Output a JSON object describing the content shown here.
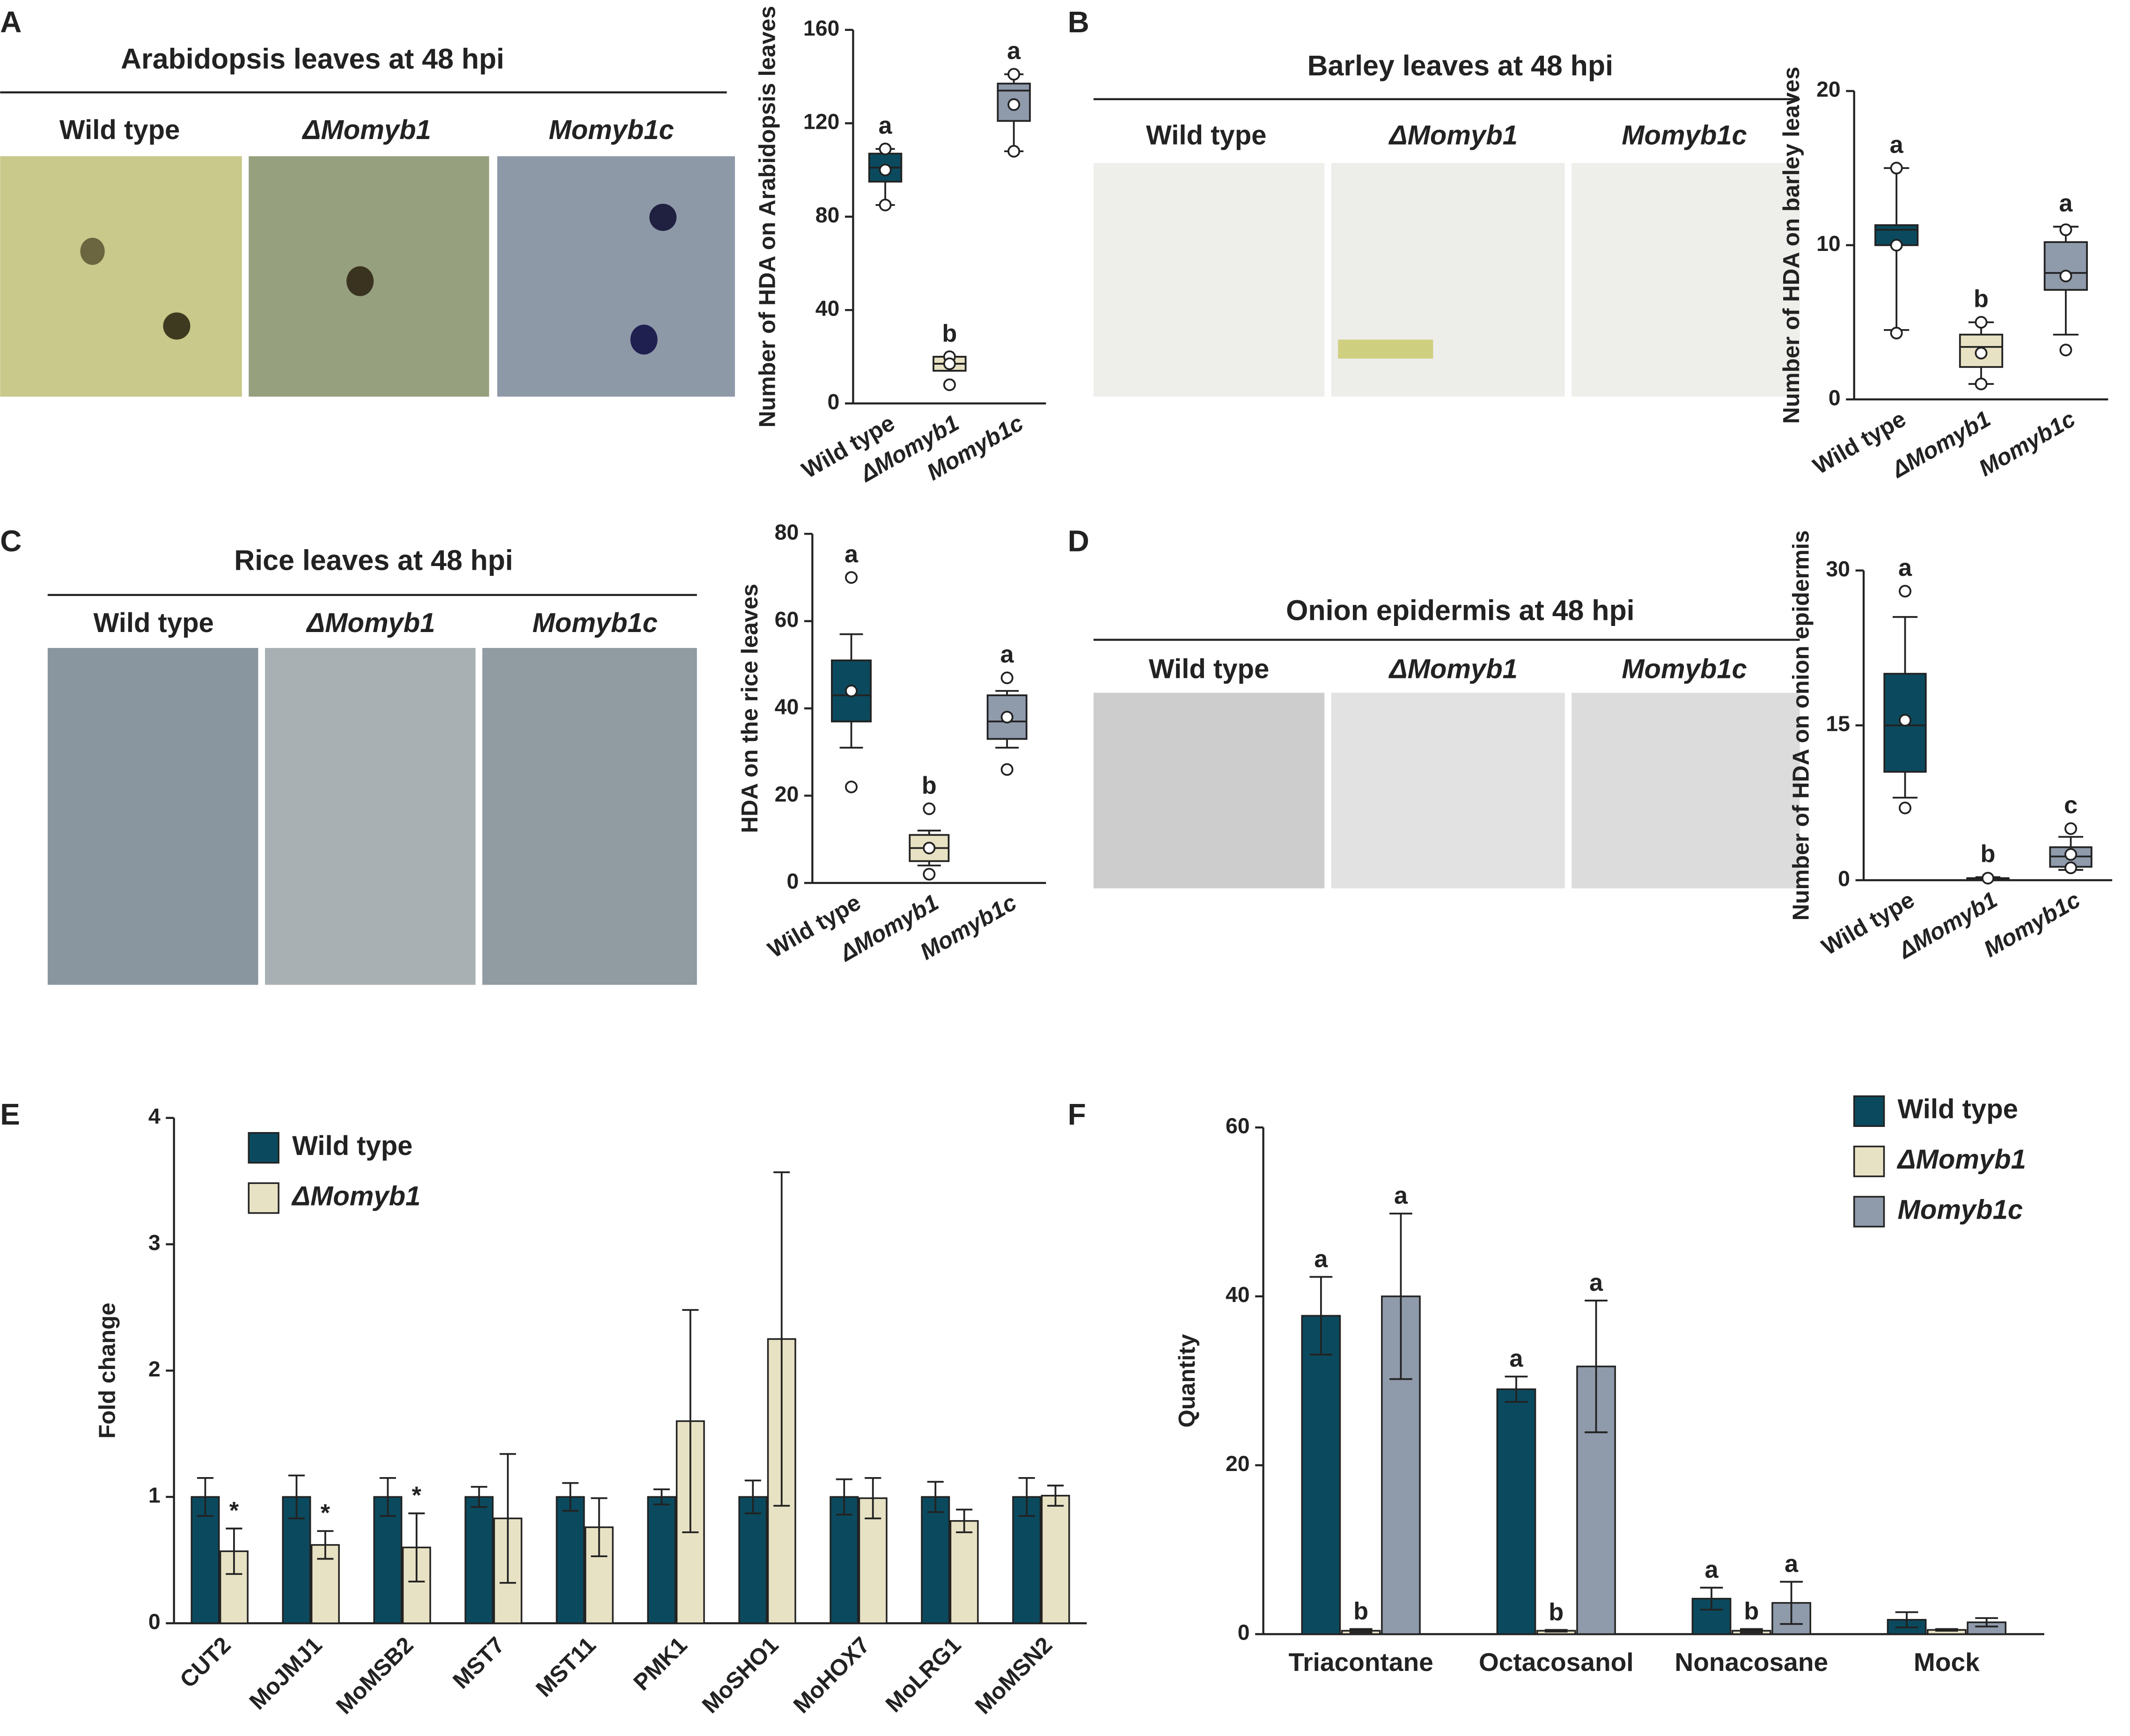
{
  "panel_labels": [
    "A",
    "B",
    "C",
    "D",
    "E",
    "F"
  ],
  "photo_panels": [
    {
      "title": "Arabidopsis leaves at 48 hpi",
      "columns": [
        "Wild type",
        "ΔMomyb1",
        "Momyb1c"
      ]
    },
    {
      "title": "Barley leaves at 48 hpi",
      "columns": [
        "Wild type",
        "ΔMomyb1",
        "Momyb1c"
      ]
    },
    {
      "title": "Rice leaves at 48 hpi",
      "columns": [
        "Wild type",
        "ΔMomyb1",
        "Momyb1c"
      ]
    },
    {
      "title": "Onion epidermis at 48 hpi",
      "columns": [
        "Wild type",
        "ΔMomyb1",
        "Momyb1c"
      ]
    }
  ],
  "chart_data": [
    {
      "type": "box",
      "y_label": "Number of HDA on Arabidopsis leaves",
      "categories": [
        "Wild type",
        "ΔMomyb1",
        "Momyb1c"
      ],
      "colors": [
        "#0b4a5e",
        "#e8e2c4",
        "#8f9aab"
      ],
      "boxes": [
        {
          "min": 85,
          "q1": 95,
          "median": 101,
          "q3": 107,
          "max": 109,
          "points": [
            109,
            100,
            85
          ]
        },
        {
          "min": 14,
          "q1": 14,
          "median": 17,
          "q3": 20,
          "max": 20,
          "points": [
            20,
            17,
            8
          ]
        },
        {
          "min": 108,
          "q1": 121,
          "median": 134,
          "q3": 137,
          "max": 141,
          "points": [
            141,
            128,
            108
          ]
        }
      ],
      "labels": [
        "a",
        "b",
        "a"
      ],
      "ylim": [
        0,
        160
      ],
      "yticks": [
        0,
        40,
        80,
        120,
        160
      ]
    },
    {
      "type": "box",
      "y_label": "Number of HDA on barley leaves",
      "categories": [
        "Wild type",
        "ΔMomyb1",
        "Momyb1c"
      ],
      "colors": [
        "#0b4a5e",
        "#e8e2c4",
        "#8f9aab"
      ],
      "boxes": [
        {
          "min": 4.5,
          "q1": 10,
          "median": 11,
          "q3": 11.3,
          "max": 15,
          "points": [
            15,
            10,
            4.3
          ]
        },
        {
          "min": 1,
          "q1": 2.1,
          "median": 3.4,
          "q3": 4.2,
          "max": 5,
          "points": [
            5,
            3,
            1
          ]
        },
        {
          "min": 4.2,
          "q1": 7.1,
          "median": 8.2,
          "q3": 10.2,
          "max": 11.2,
          "points": [
            11,
            8,
            3.2
          ]
        }
      ],
      "labels": [
        "a",
        "b",
        "a"
      ],
      "ylim": [
        0,
        20
      ],
      "yticks": [
        0,
        10,
        20
      ]
    },
    {
      "type": "box",
      "y_label": "HDA on the rice leaves",
      "categories": [
        "Wild type",
        "ΔMomyb1",
        "Momyb1c"
      ],
      "colors": [
        "#0b4a5e",
        "#e8e2c4",
        "#8f9aab"
      ],
      "boxes": [
        {
          "min": 31,
          "q1": 37,
          "median": 43,
          "q3": 51,
          "max": 57,
          "points": [
            70,
            44,
            22
          ]
        },
        {
          "min": 4,
          "q1": 5,
          "median": 8,
          "q3": 11,
          "max": 12,
          "points": [
            17,
            8,
            2
          ]
        },
        {
          "min": 31,
          "q1": 33,
          "median": 37,
          "q3": 43,
          "max": 44,
          "points": [
            47,
            38,
            26
          ]
        }
      ],
      "labels": [
        "a",
        "b",
        "a"
      ],
      "ylim": [
        0,
        80
      ],
      "yticks": [
        0,
        20,
        40,
        60,
        80
      ]
    },
    {
      "type": "box",
      "y_label": "Number of HDA on onion epidermis",
      "categories": [
        "Wild type",
        "ΔMomyb1",
        "Momyb1c"
      ],
      "colors": [
        "#0b4a5e",
        "#e8e2c4",
        "#8f9aab"
      ],
      "boxes": [
        {
          "min": 8,
          "q1": 10.5,
          "median": 15,
          "q3": 20,
          "max": 25.5,
          "points": [
            28,
            15.5,
            7
          ]
        },
        {
          "min": 0,
          "q1": 0.1,
          "median": 0.2,
          "q3": 0.2,
          "max": 0.3,
          "points": [
            0.2
          ]
        },
        {
          "min": 1,
          "q1": 1.3,
          "median": 2.3,
          "q3": 3.2,
          "max": 4.2,
          "points": [
            5,
            2.5,
            1.2
          ]
        }
      ],
      "labels": [
        "a",
        "b",
        "c"
      ],
      "ylim": [
        0,
        30
      ],
      "yticks": [
        0,
        15,
        30
      ]
    },
    {
      "type": "bar",
      "y_label": "Fold change",
      "legend": "upper left",
      "categories": [
        "CUT2",
        "MoJMJ1",
        "MoMSB2",
        "MST7",
        "MST11",
        "PMK1",
        "MoSHO1",
        "MoHOX7",
        "MoLRG1",
        "MoMSN2"
      ],
      "series": [
        {
          "name": "Wild type",
          "color": "#0b4a5e",
          "values": [
            1,
            1,
            1,
            1,
            1,
            1,
            1,
            1,
            1,
            1
          ],
          "errors": [
            0.15,
            0.17,
            0.15,
            0.08,
            0.11,
            0.06,
            0.13,
            0.14,
            0.12,
            0.15
          ]
        },
        {
          "name": "ΔMomyb1",
          "color": "#e8e2c4",
          "values": [
            0.57,
            0.62,
            0.6,
            0.83,
            0.76,
            1.6,
            2.25,
            0.99,
            0.81,
            1.01
          ],
          "errors": [
            0.18,
            0.11,
            0.27,
            0.51,
            0.23,
            0.88,
            1.32,
            0.16,
            0.09,
            0.08
          ],
          "labels": [
            "*",
            "*",
            "*",
            null,
            null,
            null,
            null,
            null,
            null,
            null
          ]
        }
      ],
      "ylim": [
        0,
        4
      ],
      "yticks": [
        0,
        1,
        2,
        3,
        4
      ]
    },
    {
      "type": "bar",
      "y_label": "Quantity",
      "legend": "upper right",
      "categories": [
        "Triacontane",
        "Octacosanol",
        "Nonacosane",
        "Mock"
      ],
      "series": [
        {
          "name": "Wild type",
          "color": "#0b4a5e",
          "values": [
            37.7,
            29,
            4.2,
            1.7
          ],
          "errors": [
            4.6,
            1.5,
            1.3,
            0.9
          ],
          "labels": [
            "a",
            "a",
            "a",
            null
          ]
        },
        {
          "name": "ΔMomyb1",
          "color": "#e8e2c4",
          "values": [
            0.4,
            0.4,
            0.4,
            0.5
          ],
          "errors": [
            0.2,
            0.1,
            0.2,
            0.1
          ],
          "labels": [
            "b",
            "b",
            "b",
            null
          ]
        },
        {
          "name": "Momyb1c",
          "color": "#8f9aab",
          "values": [
            40,
            31.7,
            3.7,
            1.4
          ],
          "errors": [
            9.8,
            7.8,
            2.5,
            0.5
          ],
          "labels": [
            "a",
            "a",
            "a",
            null
          ]
        }
      ],
      "ylim": [
        0,
        60
      ],
      "yticks": [
        0,
        20,
        40,
        60
      ]
    }
  ]
}
